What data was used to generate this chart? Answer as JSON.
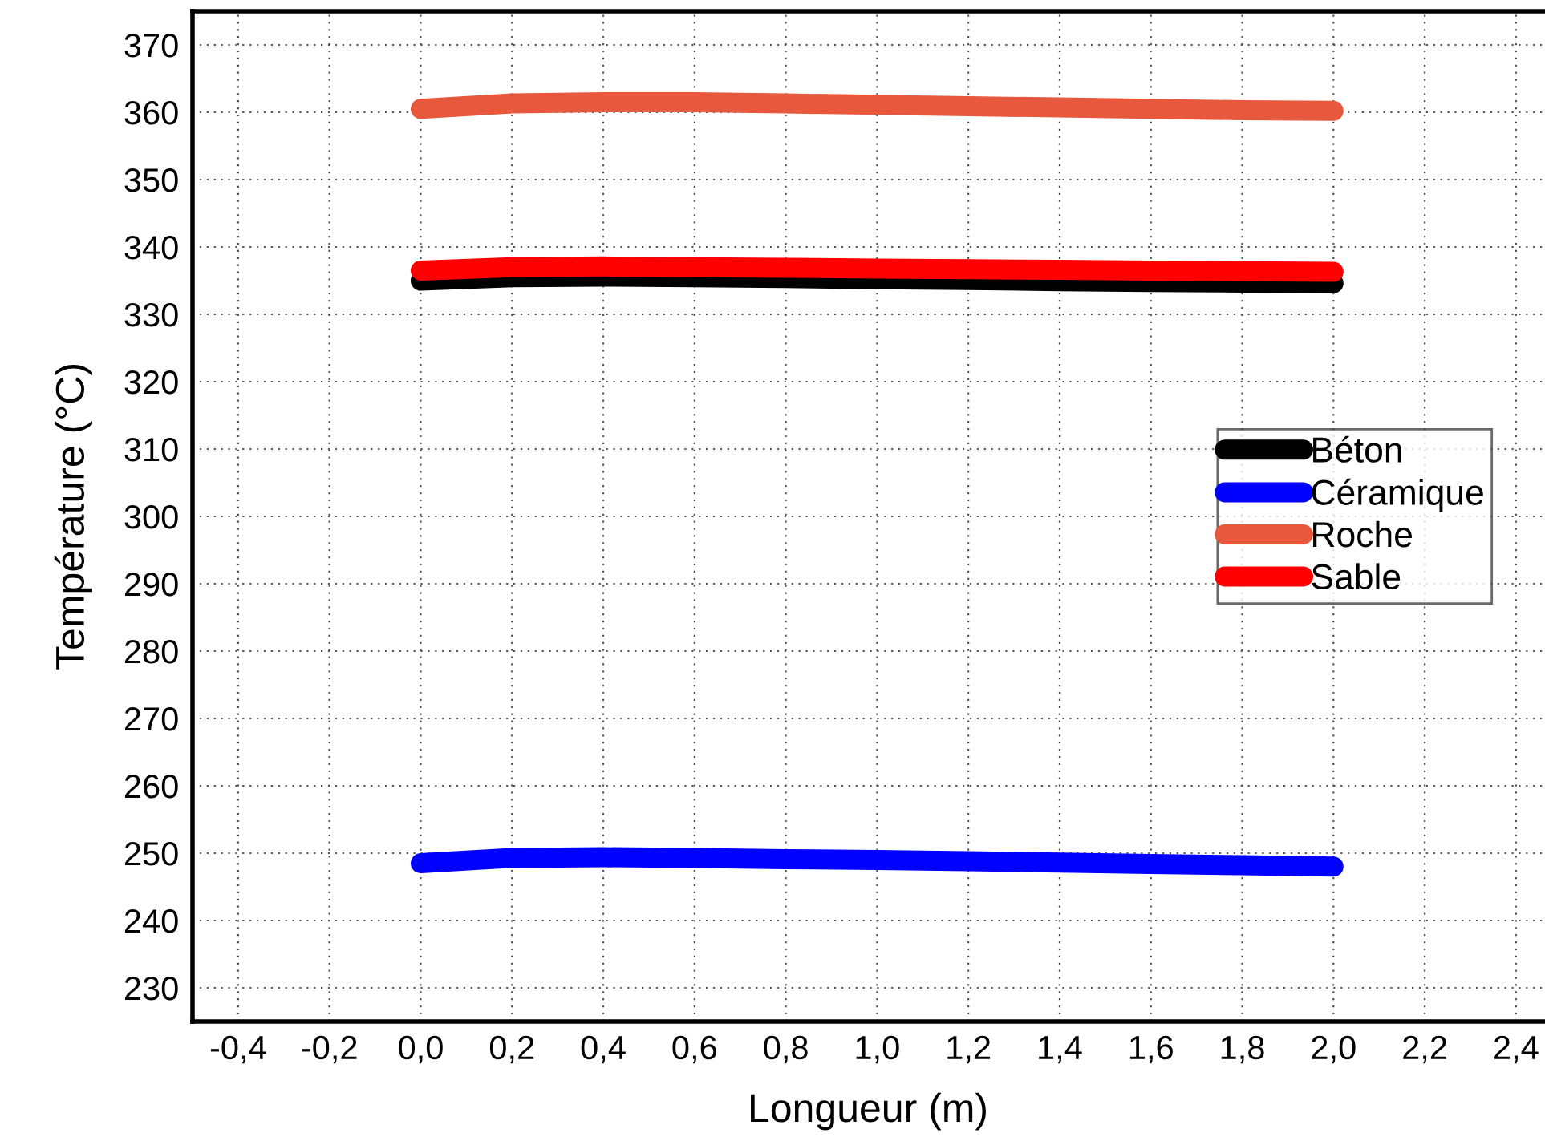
{
  "chart_data": {
    "type": "line",
    "xlabel": "Longueur (m)",
    "ylabel": "Température (°C)",
    "x": [
      0,
      0.2,
      0.4,
      0.6,
      0.8,
      1.0,
      1.2,
      1.4,
      1.6,
      1.8,
      2.0
    ],
    "series": [
      {
        "name": "Béton",
        "color": "#000000",
        "values": [
          335.0,
          335.5,
          335.6,
          335.5,
          335.4,
          335.2,
          335.1,
          334.9,
          334.8,
          334.7,
          334.6
        ]
      },
      {
        "name": "Céramique",
        "color": "#0000ff",
        "values": [
          248.5,
          249.3,
          249.4,
          249.3,
          249.1,
          249.0,
          248.8,
          248.6,
          248.4,
          248.2,
          248.0
        ]
      },
      {
        "name": "Roche",
        "color": "#e8583d",
        "values": [
          360.5,
          361.3,
          361.5,
          361.5,
          361.3,
          361.1,
          360.9,
          360.7,
          360.5,
          360.3,
          360.2
        ]
      },
      {
        "name": "Sable",
        "color": "#ff0000",
        "values": [
          336.5,
          337.0,
          337.1,
          337.0,
          336.9,
          336.8,
          336.7,
          336.6,
          336.5,
          336.4,
          336.3
        ]
      }
    ],
    "xlim": [
      -0.5,
      2.46
    ],
    "ylim": [
      225,
      375
    ],
    "xticks": [
      {
        "value": -0.4,
        "label": "-0,4"
      },
      {
        "value": -0.2,
        "label": "-0,2"
      },
      {
        "value": 0,
        "label": "0,0"
      },
      {
        "value": 0.2,
        "label": "0,2"
      },
      {
        "value": 0.4,
        "label": "0,4"
      },
      {
        "value": 0.6,
        "label": "0,6"
      },
      {
        "value": 0.8,
        "label": "0,8"
      },
      {
        "value": 1.0,
        "label": "1,0"
      },
      {
        "value": 1.2,
        "label": "1,2"
      },
      {
        "value": 1.4,
        "label": "1,4"
      },
      {
        "value": 1.6,
        "label": "1,6"
      },
      {
        "value": 1.8,
        "label": "1,8"
      },
      {
        "value": 2.0,
        "label": "2,0"
      },
      {
        "value": 2.2,
        "label": "2,2"
      },
      {
        "value": 2.4,
        "label": "2,4"
      }
    ],
    "yticks": [
      230,
      240,
      250,
      260,
      270,
      280,
      290,
      300,
      310,
      320,
      330,
      340,
      350,
      360,
      370
    ],
    "grid": true,
    "legend": "right",
    "line_style": "solid"
  }
}
